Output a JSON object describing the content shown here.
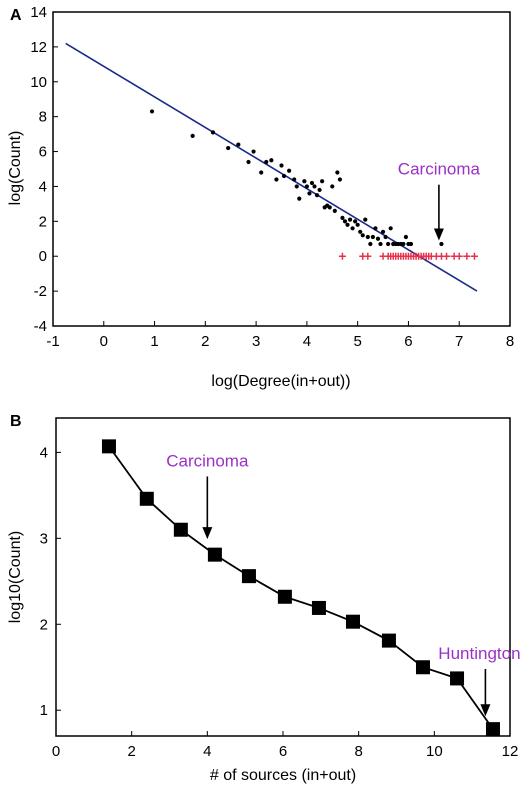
{
  "colors": {
    "annotation": "#9b30c8",
    "fit_line": "#1a2a8a",
    "points": "#000000",
    "plus_markers": "#e8304a"
  },
  "chart_data": [
    {
      "panel": "A",
      "type": "scatter",
      "xlabel": "log(Degree(in+out))",
      "ylabel": "log(Count)",
      "xlim": [
        -1,
        8
      ],
      "ylim": [
        -4,
        14
      ],
      "xticks": [
        -1,
        0,
        1,
        2,
        3,
        4,
        5,
        6,
        7,
        8
      ],
      "yticks": [
        -4,
        -2,
        0,
        2,
        4,
        6,
        8,
        10,
        12,
        14
      ],
      "fit_line": {
        "x": [
          -0.75,
          7.35
        ],
        "y": [
          12.2,
          -2.0
        ]
      },
      "points": {
        "x": [
          0.95,
          1.75,
          2.15,
          2.45,
          2.65,
          2.85,
          2.95,
          3.1,
          3.2,
          3.3,
          3.4,
          3.5,
          3.55,
          3.65,
          3.75,
          3.8,
          3.85,
          3.95,
          4.0,
          4.05,
          4.1,
          4.15,
          4.2,
          4.25,
          4.3,
          4.35,
          4.4,
          4.45,
          4.5,
          4.55,
          4.6,
          4.65,
          4.7,
          4.75,
          4.8,
          4.85,
          4.9,
          4.95,
          5.0,
          5.05,
          5.1,
          5.15,
          5.2,
          5.25,
          5.3,
          5.35,
          5.4,
          5.45,
          5.5,
          5.55,
          5.6,
          5.65,
          5.7,
          5.75,
          5.8,
          5.85,
          5.9,
          5.95,
          6.0,
          6.05,
          6.65
        ],
        "y": [
          8.3,
          6.9,
          7.1,
          6.2,
          6.4,
          5.4,
          6.0,
          4.8,
          5.4,
          5.5,
          4.4,
          5.2,
          4.6,
          4.9,
          4.4,
          4.0,
          3.3,
          4.3,
          4.0,
          3.6,
          4.2,
          4.0,
          3.5,
          3.8,
          4.3,
          2.8,
          2.9,
          2.8,
          4.0,
          2.6,
          4.8,
          4.4,
          2.2,
          2.0,
          1.8,
          2.1,
          1.6,
          2.0,
          1.8,
          1.4,
          1.2,
          2.1,
          1.1,
          0.7,
          1.1,
          1.6,
          1.0,
          0.7,
          1.4,
          1.1,
          0.7,
          1.6,
          0.7,
          0.7,
          0.7,
          0.7,
          0.7,
          1.1,
          0.7,
          0.7,
          0.7
        ]
      },
      "plus_points": {
        "x": [
          4.7,
          5.1,
          5.2,
          5.5,
          5.6,
          5.65,
          5.7,
          5.75,
          5.8,
          5.85,
          5.9,
          5.95,
          6.0,
          6.05,
          6.1,
          6.15,
          6.2,
          6.25,
          6.3,
          6.35,
          6.4,
          6.45,
          6.55,
          6.65,
          6.75,
          6.9,
          7.0,
          7.15,
          7.3
        ],
        "y": [
          0,
          0,
          0,
          0,
          0,
          0,
          0,
          0,
          0,
          0,
          0,
          0,
          0,
          0,
          0,
          0,
          0,
          0,
          0,
          0,
          0,
          0,
          0,
          0,
          0,
          0,
          0,
          0,
          0
        ]
      },
      "annotation": {
        "text": "Carcinoma",
        "arrow_from": [
          6.6,
          4.1
        ],
        "arrow_to": [
          6.6,
          0.9
        ]
      }
    },
    {
      "panel": "B",
      "type": "line",
      "xlabel": "# of sources (in+out)",
      "ylabel": "log10(Count)",
      "xlim": [
        0,
        12
      ],
      "ylim": [
        0.7,
        4.4
      ],
      "xticks": [
        0,
        2,
        4,
        6,
        8,
        10,
        12
      ],
      "yticks": [
        1,
        2,
        3,
        4
      ],
      "x": [
        1.4,
        2.4,
        3.3,
        4.2,
        5.1,
        6.05,
        6.95,
        7.85,
        8.8,
        9.7,
        10.6,
        11.55
      ],
      "y": [
        4.07,
        3.46,
        3.1,
        2.81,
        2.56,
        2.32,
        2.19,
        2.03,
        1.81,
        1.5,
        1.37,
        0.78
      ],
      "annotations": [
        {
          "text": "Carcinoma",
          "arrow_from": [
            4.0,
            3.72
          ],
          "arrow_to": [
            4.0,
            2.99
          ]
        },
        {
          "text": "Huntington’s",
          "arrow_from": [
            11.35,
            1.48
          ],
          "arrow_to": [
            11.35,
            0.93
          ]
        }
      ]
    }
  ]
}
